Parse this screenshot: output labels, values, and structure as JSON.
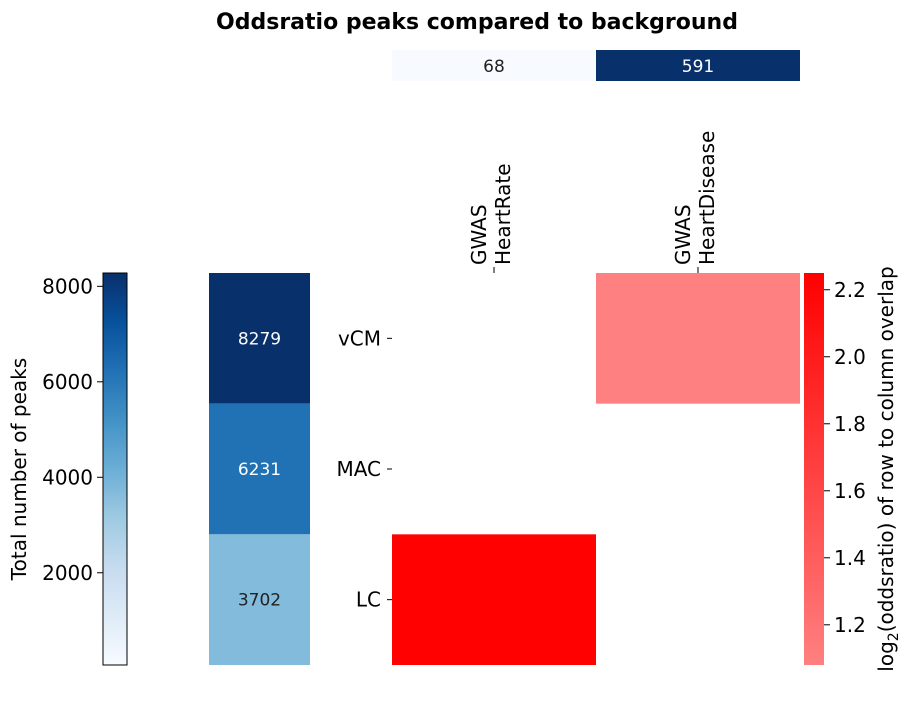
{
  "chart_data": {
    "type": "heatmap",
    "title": "Oddsratio peaks compared to background",
    "rows": [
      "vCM",
      "MAC",
      "LC"
    ],
    "columns": [
      {
        "id": "heartrate",
        "label_lines": [
          "GWAS",
          "HeartRate"
        ]
      },
      {
        "id": "heartdisease",
        "label_lines": [
          "GWAS",
          "HeartDisease"
        ]
      }
    ],
    "column_totals": [
      68,
      591
    ],
    "row_totals": [
      8279,
      6231,
      3702
    ],
    "matrix": [
      [
        null,
        1.08
      ],
      [
        null,
        null
      ],
      [
        2.24,
        null
      ]
    ],
    "left_colorbar": {
      "label": "Total number of peaks",
      "min": 68,
      "max": 8279,
      "ticks": [
        "2000",
        "4000",
        "6000",
        "8000"
      ],
      "colors": [
        "#f7fbff",
        "#deebf7",
        "#c6dbef",
        "#9ecae1",
        "#6baed6",
        "#4292c6",
        "#2171b5",
        "#08519c",
        "#08306b"
      ]
    },
    "right_colorbar": {
      "label_prefix": "log",
      "label_subscript": "2",
      "label_suffix": "(oddsratio) of row to column overlap",
      "min": 1.08,
      "max": 2.25,
      "ticks": [
        "1.2",
        "1.4",
        "1.6",
        "1.8",
        "2.0",
        "2.2"
      ],
      "color_low": "#ff8080",
      "color_high": "#ff0000"
    }
  }
}
